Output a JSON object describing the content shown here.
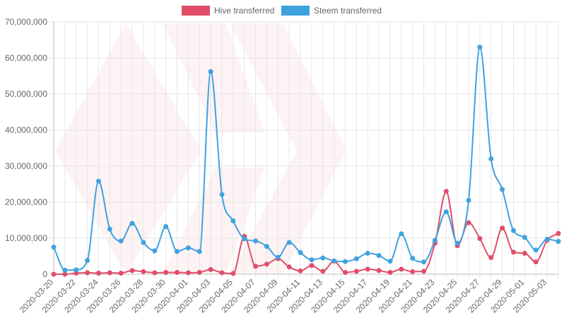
{
  "chart_data": {
    "type": "line",
    "title": "",
    "xlabel": "",
    "ylabel": "",
    "ylim": [
      0,
      70000000
    ],
    "y_ticks": [
      "0",
      "10,000,000",
      "20,000,000",
      "30,000,000",
      "40,000,000",
      "50,000,000",
      "60,000,000",
      "70,000,000"
    ],
    "y_tick_values": [
      0,
      10000000,
      20000000,
      30000000,
      40000000,
      50000000,
      60000000,
      70000000
    ],
    "x_tick_labels": [
      "2020-03-20",
      "2020-03-22",
      "2020-03-24",
      "2020-03-26",
      "2020-03-28",
      "2020-03-30",
      "2020-04-01",
      "2020-04-03",
      "2020-04-05",
      "2020-04-07",
      "2020-04-09",
      "2020-04-11",
      "2020-04-13",
      "2020-04-15",
      "2020-04-17",
      "2020-04-19",
      "2020-04-21",
      "2020-04-23",
      "2020-04-25",
      "2020-04-27",
      "2020-04-29",
      "2020-05-01",
      "2020-05-03"
    ],
    "categories": [
      "2020-03-20",
      "2020-03-21",
      "2020-03-22",
      "2020-03-23",
      "2020-03-24",
      "2020-03-25",
      "2020-03-26",
      "2020-03-27",
      "2020-03-28",
      "2020-03-29",
      "2020-03-30",
      "2020-03-31",
      "2020-04-01",
      "2020-04-02",
      "2020-04-03",
      "2020-04-04",
      "2020-04-05",
      "2020-04-06",
      "2020-04-07",
      "2020-04-08",
      "2020-04-09",
      "2020-04-10",
      "2020-04-11",
      "2020-04-12",
      "2020-04-13",
      "2020-04-14",
      "2020-04-15",
      "2020-04-16",
      "2020-04-17",
      "2020-04-18",
      "2020-04-19",
      "2020-04-20",
      "2020-04-21",
      "2020-04-22",
      "2020-04-23",
      "2020-04-24",
      "2020-04-25",
      "2020-04-26",
      "2020-04-27",
      "2020-04-28",
      "2020-04-29",
      "2020-04-30",
      "2020-05-01",
      "2020-05-02",
      "2020-05-03",
      "2020-05-04"
    ],
    "legend_position": "top-center",
    "series": [
      {
        "name": "Hive transferred",
        "color": "#e04e6a",
        "values": [
          0,
          0,
          300000,
          400000,
          300000,
          400000,
          300000,
          1000000,
          700000,
          400000,
          500000,
          500000,
          400000,
          500000,
          1300000,
          400000,
          200000,
          10500000,
          2200000,
          2800000,
          4300000,
          2000000,
          900000,
          2400000,
          800000,
          3600000,
          500000,
          800000,
          1400000,
          1000000,
          500000,
          1400000,
          700000,
          800000,
          8600000,
          23000000,
          7900000,
          14300000,
          9900000,
          4600000,
          12800000,
          6100000,
          5800000,
          3400000,
          9400000,
          11300000
        ]
      },
      {
        "name": "Steem transferred",
        "color": "#3fa2e0",
        "values": [
          7500000,
          1100000,
          1200000,
          3800000,
          25800000,
          12500000,
          9200000,
          14100000,
          8800000,
          6500000,
          13200000,
          6300000,
          7300000,
          6300000,
          56200000,
          22100000,
          14800000,
          9800000,
          9200000,
          7700000,
          4700000,
          8800000,
          6000000,
          4000000,
          4500000,
          3700000,
          3500000,
          4300000,
          5800000,
          5200000,
          3600000,
          11200000,
          4400000,
          3400000,
          9400000,
          17300000,
          8600000,
          20500000,
          63000000,
          32000000,
          23500000,
          12100000,
          10200000,
          6700000,
          9700000,
          9100000
        ]
      }
    ]
  }
}
